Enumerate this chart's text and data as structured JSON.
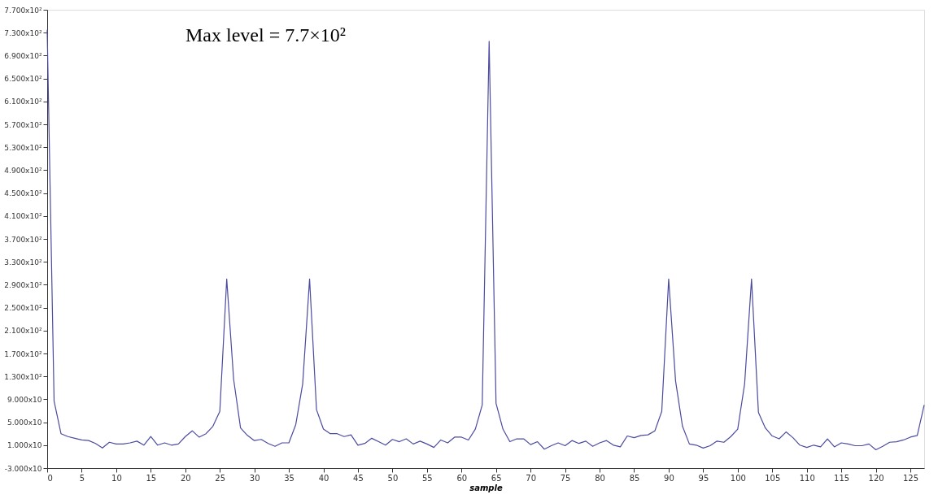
{
  "chart_data": {
    "type": "line",
    "xlabel": "sample",
    "annotations": [
      "Max level = 7.7×10²"
    ],
    "x": [
      0,
      1,
      2,
      3,
      4,
      5,
      6,
      7,
      8,
      9,
      10,
      11,
      12,
      13,
      14,
      15,
      16,
      17,
      18,
      19,
      20,
      21,
      22,
      23,
      24,
      25,
      26,
      27,
      28,
      29,
      30,
      31,
      32,
      33,
      34,
      35,
      36,
      37,
      38,
      39,
      40,
      41,
      42,
      43,
      44,
      45,
      46,
      47,
      48,
      49,
      50,
      51,
      52,
      53,
      54,
      55,
      56,
      57,
      58,
      59,
      60,
      61,
      62,
      63,
      64,
      65,
      66,
      67,
      68,
      69,
      70,
      71,
      72,
      73,
      74,
      75,
      76,
      77,
      78,
      79,
      80,
      81,
      82,
      83,
      84,
      85,
      86,
      87,
      88,
      89,
      90,
      91,
      92,
      93,
      94,
      95,
      96,
      97,
      98,
      99,
      100,
      101,
      102,
      103,
      104,
      105,
      106,
      107,
      108,
      109,
      110,
      111,
      112,
      113,
      114,
      115,
      116,
      117,
      118,
      119,
      120,
      121,
      122,
      123,
      124,
      125,
      126,
      127
    ],
    "series": [
      {
        "color": "#4b4ba0",
        "values": [
          735,
          87,
          30,
          25,
          22,
          19,
          18,
          13,
          5,
          15,
          12,
          12,
          14,
          17,
          10,
          25,
          10,
          14,
          10,
          12,
          25,
          35,
          24,
          30,
          43,
          69,
          300,
          125,
          40,
          27,
          18,
          20,
          13,
          8,
          14,
          14,
          46,
          117,
          300,
          72,
          38,
          30,
          30,
          25,
          28,
          10,
          13,
          22,
          16,
          10,
          20,
          16,
          21,
          12,
          17,
          12,
          6,
          19,
          14,
          24,
          24,
          19,
          38,
          80,
          715,
          83,
          38,
          16,
          21,
          21,
          11,
          16,
          3,
          9,
          14,
          9,
          18,
          13,
          17,
          8,
          14,
          18,
          10,
          7,
          26,
          23,
          27,
          28,
          35,
          69,
          300,
          122,
          43,
          12,
          10,
          5,
          9,
          17,
          15,
          25,
          38,
          117,
          300,
          67,
          40,
          26,
          21,
          33,
          23,
          10,
          6,
          10,
          7,
          21,
          7,
          14,
          12,
          9,
          9,
          12,
          2,
          8,
          15,
          16,
          19,
          24,
          27,
          80
        ]
      }
    ],
    "xlim": [
      0,
      127
    ],
    "xticks": [
      0,
      5,
      10,
      15,
      20,
      25,
      30,
      35,
      40,
      45,
      50,
      55,
      60,
      65,
      70,
      75,
      80,
      85,
      90,
      95,
      100,
      105,
      110,
      115,
      120,
      125
    ],
    "ylim": [
      -30,
      770
    ],
    "yticks": [
      {
        "value": -30,
        "label": "-3.000x10"
      },
      {
        "value": 10,
        "label": "1.000x10"
      },
      {
        "value": 50,
        "label": "5.000x10"
      },
      {
        "value": 90,
        "label": "9.000x10"
      },
      {
        "value": 130,
        "label": "1.300x10²"
      },
      {
        "value": 170,
        "label": "1.700x10²"
      },
      {
        "value": 210,
        "label": "2.100x10²"
      },
      {
        "value": 250,
        "label": "2.500x10²"
      },
      {
        "value": 290,
        "label": "2.900x10²"
      },
      {
        "value": 330,
        "label": "3.300x10²"
      },
      {
        "value": 370,
        "label": "3.700x10²"
      },
      {
        "value": 410,
        "label": "4.100x10²"
      },
      {
        "value": 450,
        "label": "4.500x10²"
      },
      {
        "value": 490,
        "label": "4.900x10²"
      },
      {
        "value": 530,
        "label": "5.300x10²"
      },
      {
        "value": 570,
        "label": "5.700x10²"
      },
      {
        "value": 610,
        "label": "6.100x10²"
      },
      {
        "value": 650,
        "label": "6.500x10²"
      },
      {
        "value": 690,
        "label": "6.900x10²"
      },
      {
        "value": 730,
        "label": "7.300x10²"
      },
      {
        "value": 770,
        "label": "7.700x10²"
      }
    ],
    "grid": false,
    "marker": "none",
    "line_style": "solid"
  }
}
